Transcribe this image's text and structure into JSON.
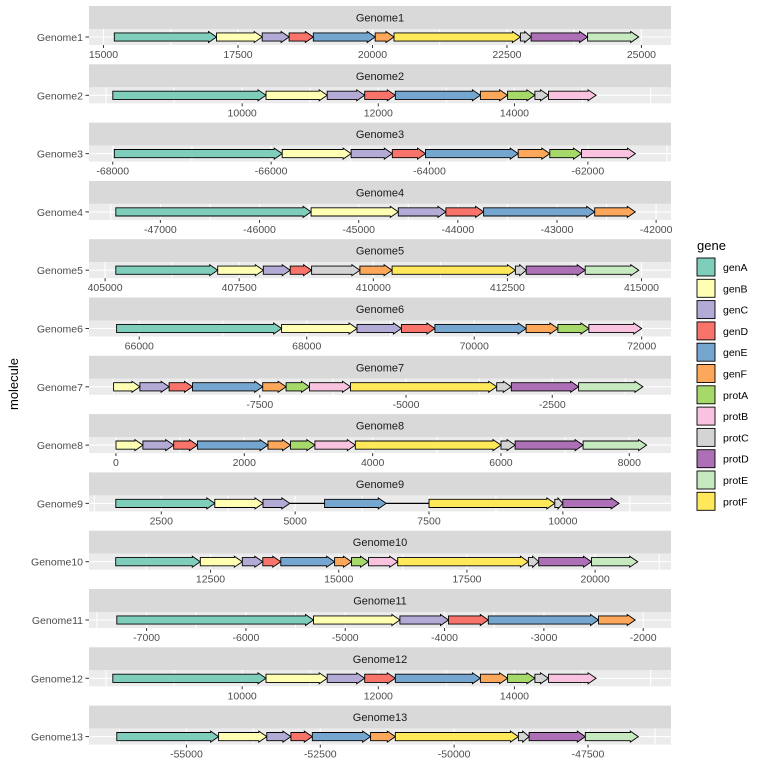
{
  "chart_data": {
    "type": "gene-arrow-map",
    "ylabel": "molecule",
    "legend": {
      "title": "gene",
      "entries": [
        {
          "name": "genA",
          "color": "#7fcdbb"
        },
        {
          "name": "genB",
          "color": "#ffffb3"
        },
        {
          "name": "genC",
          "color": "#b3aad6"
        },
        {
          "name": "genD",
          "color": "#f8736a"
        },
        {
          "name": "genE",
          "color": "#74a6cf"
        },
        {
          "name": "genF",
          "color": "#fda75a"
        },
        {
          "name": "protA",
          "color": "#a6d96a"
        },
        {
          "name": "protB",
          "color": "#f9c3df"
        },
        {
          "name": "protC",
          "color": "#d4d4d4"
        },
        {
          "name": "protD",
          "color": "#ad6fb5"
        },
        {
          "name": "protE",
          "color": "#c7e9c0"
        },
        {
          "name": "protF",
          "color": "#ffe95b"
        }
      ]
    },
    "panels": [
      {
        "title": "Genome1",
        "molecule": "Genome1",
        "xlim": [
          14730,
          25550
        ],
        "ticks": [
          "15000",
          "17500",
          "20000",
          "22500",
          "25000"
        ],
        "genes": [
          {
            "gene": "genA",
            "start": 15200,
            "end": 17100
          },
          {
            "gene": "genB",
            "start": 17100,
            "end": 17950
          },
          {
            "gene": "genC",
            "start": 17950,
            "end": 18450
          },
          {
            "gene": "genD",
            "start": 18450,
            "end": 18900
          },
          {
            "gene": "genE",
            "start": 18900,
            "end": 20050
          },
          {
            "gene": "genF",
            "start": 20050,
            "end": 20400
          },
          {
            "gene": "protF",
            "start": 20400,
            "end": 22750
          },
          {
            "gene": "protC",
            "start": 22750,
            "end": 22950
          },
          {
            "gene": "protD",
            "start": 22950,
            "end": 24000
          },
          {
            "gene": "protE",
            "start": 24000,
            "end": 24950
          }
        ]
      },
      {
        "title": "Genome2",
        "molecule": "Genome2",
        "xlim": [
          7750,
          16300
        ],
        "ticks": [
          "10000",
          "12000",
          "14000"
        ],
        "genes": [
          {
            "gene": "genA",
            "start": 8100,
            "end": 10350
          },
          {
            "gene": "genB",
            "start": 10350,
            "end": 11250
          },
          {
            "gene": "genC",
            "start": 11250,
            "end": 11800
          },
          {
            "gene": "genD",
            "start": 11800,
            "end": 12250
          },
          {
            "gene": "genE",
            "start": 12250,
            "end": 13500
          },
          {
            "gene": "genF",
            "start": 13500,
            "end": 13900
          },
          {
            "gene": "protA",
            "start": 13900,
            "end": 14300
          },
          {
            "gene": "protC",
            "start": 14300,
            "end": 14500
          },
          {
            "gene": "protB",
            "start": 14500,
            "end": 15200
          }
        ]
      },
      {
        "title": "Genome3",
        "molecule": "Genome3",
        "xlim": [
          -68300,
          -60950
        ],
        "ticks": [
          "-68000",
          "-66000",
          "-64000",
          "-62000"
        ],
        "genes": [
          {
            "gene": "genA",
            "start": -67980,
            "end": -65860
          },
          {
            "gene": "genB",
            "start": -65860,
            "end": -64990
          },
          {
            "gene": "genC",
            "start": -64990,
            "end": -64470
          },
          {
            "gene": "genD",
            "start": -64470,
            "end": -64050
          },
          {
            "gene": "genE",
            "start": -64050,
            "end": -62880
          },
          {
            "gene": "genF",
            "start": -62880,
            "end": -62480
          },
          {
            "gene": "protA",
            "start": -62480,
            "end": -62080
          },
          {
            "gene": "protB",
            "start": -62080,
            "end": -61400
          }
        ]
      },
      {
        "title": "Genome4",
        "molecule": "Genome4",
        "xlim": [
          -47720,
          -41850
        ],
        "ticks": [
          "-47000",
          "-46000",
          "-45000",
          "-44000",
          "-43000",
          "-42000"
        ],
        "genes": [
          {
            "gene": "genA",
            "start": -47450,
            "end": -45480
          },
          {
            "gene": "genB",
            "start": -45480,
            "end": -44600
          },
          {
            "gene": "genC",
            "start": -44600,
            "end": -44120
          },
          {
            "gene": "genD",
            "start": -44120,
            "end": -43740
          },
          {
            "gene": "genE",
            "start": -43740,
            "end": -42620
          },
          {
            "gene": "genF",
            "start": -42620,
            "end": -42210
          }
        ]
      },
      {
        "title": "Genome5",
        "molecule": "Genome5",
        "xlim": [
          404700,
          415550
        ],
        "ticks": [
          "405000",
          "407500",
          "410000",
          "412500",
          "415000"
        ],
        "genes": [
          {
            "gene": "genA",
            "start": 405200,
            "end": 407100
          },
          {
            "gene": "genB",
            "start": 407100,
            "end": 407950
          },
          {
            "gene": "genC",
            "start": 407950,
            "end": 408450
          },
          {
            "gene": "genD",
            "start": 408450,
            "end": 408850
          },
          {
            "gene": "protC",
            "start": 408850,
            "end": 409750
          },
          {
            "gene": "genF",
            "start": 409750,
            "end": 410350
          },
          {
            "gene": "protF",
            "start": 410350,
            "end": 412650
          },
          {
            "gene": "protC",
            "start": 412650,
            "end": 412850
          },
          {
            "gene": "protD",
            "start": 412850,
            "end": 413950
          },
          {
            "gene": "protE",
            "start": 413950,
            "end": 414950
          }
        ]
      },
      {
        "title": "Genome6",
        "molecule": "Genome6",
        "xlim": [
          65400,
          72350
        ],
        "ticks": [
          "66000",
          "68000",
          "70000",
          "72000"
        ],
        "genes": [
          {
            "gene": "genA",
            "start": 65730,
            "end": 67700
          },
          {
            "gene": "genB",
            "start": 67700,
            "end": 68600
          },
          {
            "gene": "genC",
            "start": 68600,
            "end": 69130
          },
          {
            "gene": "genD",
            "start": 69130,
            "end": 69530
          },
          {
            "gene": "genE",
            "start": 69530,
            "end": 70620
          },
          {
            "gene": "genF",
            "start": 70620,
            "end": 71000
          },
          {
            "gene": "protA",
            "start": 71000,
            "end": 71370
          },
          {
            "gene": "protB",
            "start": 71370,
            "end": 72000
          }
        ]
      },
      {
        "title": "Genome7",
        "molecule": "Genome7",
        "xlim": [
          -10420,
          -470
        ],
        "ticks": [
          "-7500",
          "-5000",
          "-2500"
        ],
        "genes": [
          {
            "gene": "genB",
            "start": -10000,
            "end": -9550
          },
          {
            "gene": "genC",
            "start": -9550,
            "end": -9050
          },
          {
            "gene": "genD",
            "start": -9050,
            "end": -8650
          },
          {
            "gene": "genE",
            "start": -8650,
            "end": -7450
          },
          {
            "gene": "genF",
            "start": -7450,
            "end": -7050
          },
          {
            "gene": "protA",
            "start": -7050,
            "end": -6650
          },
          {
            "gene": "protB",
            "start": -6650,
            "end": -5950
          },
          {
            "gene": "protF",
            "start": -5950,
            "end": -3450
          },
          {
            "gene": "protC",
            "start": -3450,
            "end": -3200
          },
          {
            "gene": "protD",
            "start": -3200,
            "end": -2050
          },
          {
            "gene": "protE",
            "start": -2050,
            "end": -950
          }
        ]
      },
      {
        "title": "Genome8",
        "molecule": "Genome8",
        "xlim": [
          -420,
          8650
        ],
        "ticks": [
          "0",
          "2000",
          "4000",
          "6000",
          "8000"
        ],
        "genes": [
          {
            "gene": "genB",
            "start": 0,
            "end": 420
          },
          {
            "gene": "genC",
            "start": 420,
            "end": 900
          },
          {
            "gene": "genD",
            "start": 900,
            "end": 1270
          },
          {
            "gene": "genE",
            "start": 1270,
            "end": 2370
          },
          {
            "gene": "genF",
            "start": 2370,
            "end": 2720
          },
          {
            "gene": "protA",
            "start": 2720,
            "end": 3100
          },
          {
            "gene": "protB",
            "start": 3100,
            "end": 3730
          },
          {
            "gene": "protF",
            "start": 3730,
            "end": 6000
          },
          {
            "gene": "protC",
            "start": 6000,
            "end": 6220
          },
          {
            "gene": "protD",
            "start": 6220,
            "end": 7280
          },
          {
            "gene": "protE",
            "start": 7280,
            "end": 8270
          }
        ]
      },
      {
        "title": "Genome9",
        "molecule": "Genome9",
        "xlim": [
          1150,
          12020
        ],
        "ticks": [
          "2500",
          "5000",
          "7500",
          "10000"
        ],
        "genes": [
          {
            "gene": "genA",
            "start": 1650,
            "end": 3500
          },
          {
            "gene": "genB",
            "start": 3500,
            "end": 4400
          },
          {
            "gene": "genC",
            "start": 4400,
            "end": 4900
          },
          {
            "gene": "genE",
            "start": 5550,
            "end": 6700
          },
          {
            "gene": "protF",
            "start": 7500,
            "end": 9850
          },
          {
            "gene": "protC",
            "start": 9850,
            "end": 10000
          },
          {
            "gene": "protD",
            "start": 10000,
            "end": 11050
          }
        ]
      },
      {
        "title": "Genome10",
        "molecule": "Genome10",
        "xlim": [
          10130,
          21480
        ],
        "ticks": [
          "12500",
          "15000",
          "17500",
          "20000"
        ],
        "genes": [
          {
            "gene": "genA",
            "start": 10650,
            "end": 12300
          },
          {
            "gene": "genB",
            "start": 12300,
            "end": 13120
          },
          {
            "gene": "genC",
            "start": 13120,
            "end": 13520
          },
          {
            "gene": "genD",
            "start": 13520,
            "end": 13870
          },
          {
            "gene": "genE",
            "start": 13870,
            "end": 14920
          },
          {
            "gene": "genF",
            "start": 14920,
            "end": 15250
          },
          {
            "gene": "protA",
            "start": 15250,
            "end": 15580
          },
          {
            "gene": "protB",
            "start": 15580,
            "end": 16150
          },
          {
            "gene": "protF",
            "start": 16150,
            "end": 18700
          },
          {
            "gene": "protC",
            "start": 18700,
            "end": 18900
          },
          {
            "gene": "protD",
            "start": 18900,
            "end": 19930
          },
          {
            "gene": "protE",
            "start": 19930,
            "end": 20830
          }
        ]
      },
      {
        "title": "Genome11",
        "molecule": "Genome11",
        "xlim": [
          -7580,
          -1720
        ],
        "ticks": [
          "-7000",
          "-6000",
          "-5000",
          "-4000",
          "-3000",
          "-2000"
        ],
        "genes": [
          {
            "gene": "genA",
            "start": -7300,
            "end": -5320
          },
          {
            "gene": "genB",
            "start": -5320,
            "end": -4450
          },
          {
            "gene": "genC",
            "start": -4450,
            "end": -3960
          },
          {
            "gene": "genD",
            "start": -3960,
            "end": -3560
          },
          {
            "gene": "genE",
            "start": -3560,
            "end": -2450
          },
          {
            "gene": "genF",
            "start": -2450,
            "end": -2080
          }
        ]
      },
      {
        "title": "Genome12",
        "molecule": "Genome12",
        "xlim": [
          7750,
          16300
        ],
        "ticks": [
          "10000",
          "12000",
          "14000"
        ],
        "genes": [
          {
            "gene": "genA",
            "start": 8100,
            "end": 10350
          },
          {
            "gene": "genB",
            "start": 10350,
            "end": 11250
          },
          {
            "gene": "genC",
            "start": 11250,
            "end": 11800
          },
          {
            "gene": "genD",
            "start": 11800,
            "end": 12250
          },
          {
            "gene": "genE",
            "start": 12250,
            "end": 13500
          },
          {
            "gene": "genF",
            "start": 13500,
            "end": 13900
          },
          {
            "gene": "protA",
            "start": 13900,
            "end": 14300
          },
          {
            "gene": "protC",
            "start": 14300,
            "end": 14500
          },
          {
            "gene": "protB",
            "start": 14500,
            "end": 15200
          }
        ]
      },
      {
        "title": "Genome13",
        "molecule": "Genome13",
        "xlim": [
          -56820,
          -45950
        ],
        "ticks": [
          "-55000",
          "-52500",
          "-50000",
          "-47500"
        ],
        "genes": [
          {
            "gene": "genA",
            "start": -56300,
            "end": -54400
          },
          {
            "gene": "genB",
            "start": -54400,
            "end": -53500
          },
          {
            "gene": "genC",
            "start": -53500,
            "end": -53050
          },
          {
            "gene": "genD",
            "start": -53050,
            "end": -52650
          },
          {
            "gene": "genE",
            "start": -52650,
            "end": -51560
          },
          {
            "gene": "genF",
            "start": -51560,
            "end": -51100
          },
          {
            "gene": "protF",
            "start": -51100,
            "end": -48800
          },
          {
            "gene": "protC",
            "start": -48800,
            "end": -48600
          },
          {
            "gene": "protD",
            "start": -48600,
            "end": -47550
          },
          {
            "gene": "protE",
            "start": -47550,
            "end": -46560
          }
        ]
      }
    ]
  }
}
